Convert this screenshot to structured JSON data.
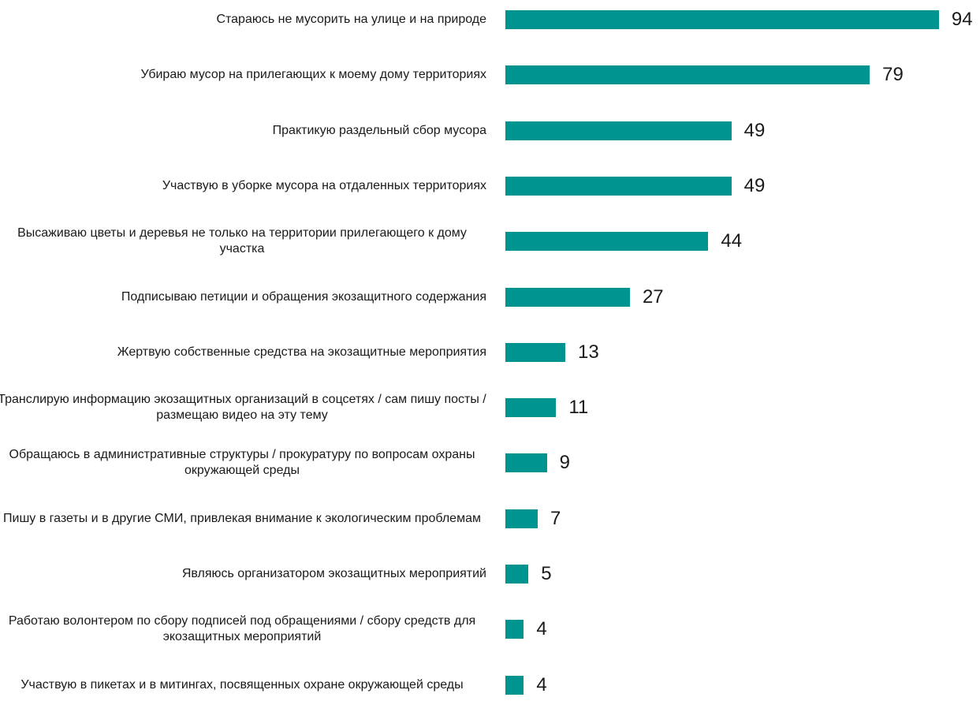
{
  "chart_data": {
    "type": "bar",
    "orientation": "horizontal",
    "categories": [
      "Стараюсь не мусорить на улице и на природе",
      "Убираю мусор на прилегающих к моему дому территориях",
      "Практикую раздельный сбор мусора",
      "Участвую в уборке мусора на отдаленных территориях",
      "Высаживаю цветы и деревья не только на территории прилегающего к дому участка",
      "Подписываю петиции и обращения экозащитного содержания",
      "Жертвую собственные средства на экозащитные мероприятия",
      "Транслирую информацию экозащитных организаций в соцсетях / сам пишу посты / размещаю видео на эту тему",
      "Обращаюсь в административные структуры / прокуратуру по вопросам охраны окружающей среды",
      "Пишу в газеты и в другие СМИ, привлекая внимание к экологическим проблемам",
      "Являюсь организатором экозащитных мероприятий",
      "Работаю волонтером по сбору подписей под обращениями / сбору средств для экозащитных мероприятий",
      "Участвую в пикетах и в митингах, посвященных охране окружающей среды"
    ],
    "values": [
      94,
      79,
      49,
      49,
      44,
      27,
      13,
      11,
      9,
      7,
      5,
      4,
      4
    ],
    "xlim": [
      0,
      100
    ],
    "grid": false,
    "legend": "none",
    "bar_color": "#009490",
    "text_color": "#1a1a1a"
  }
}
